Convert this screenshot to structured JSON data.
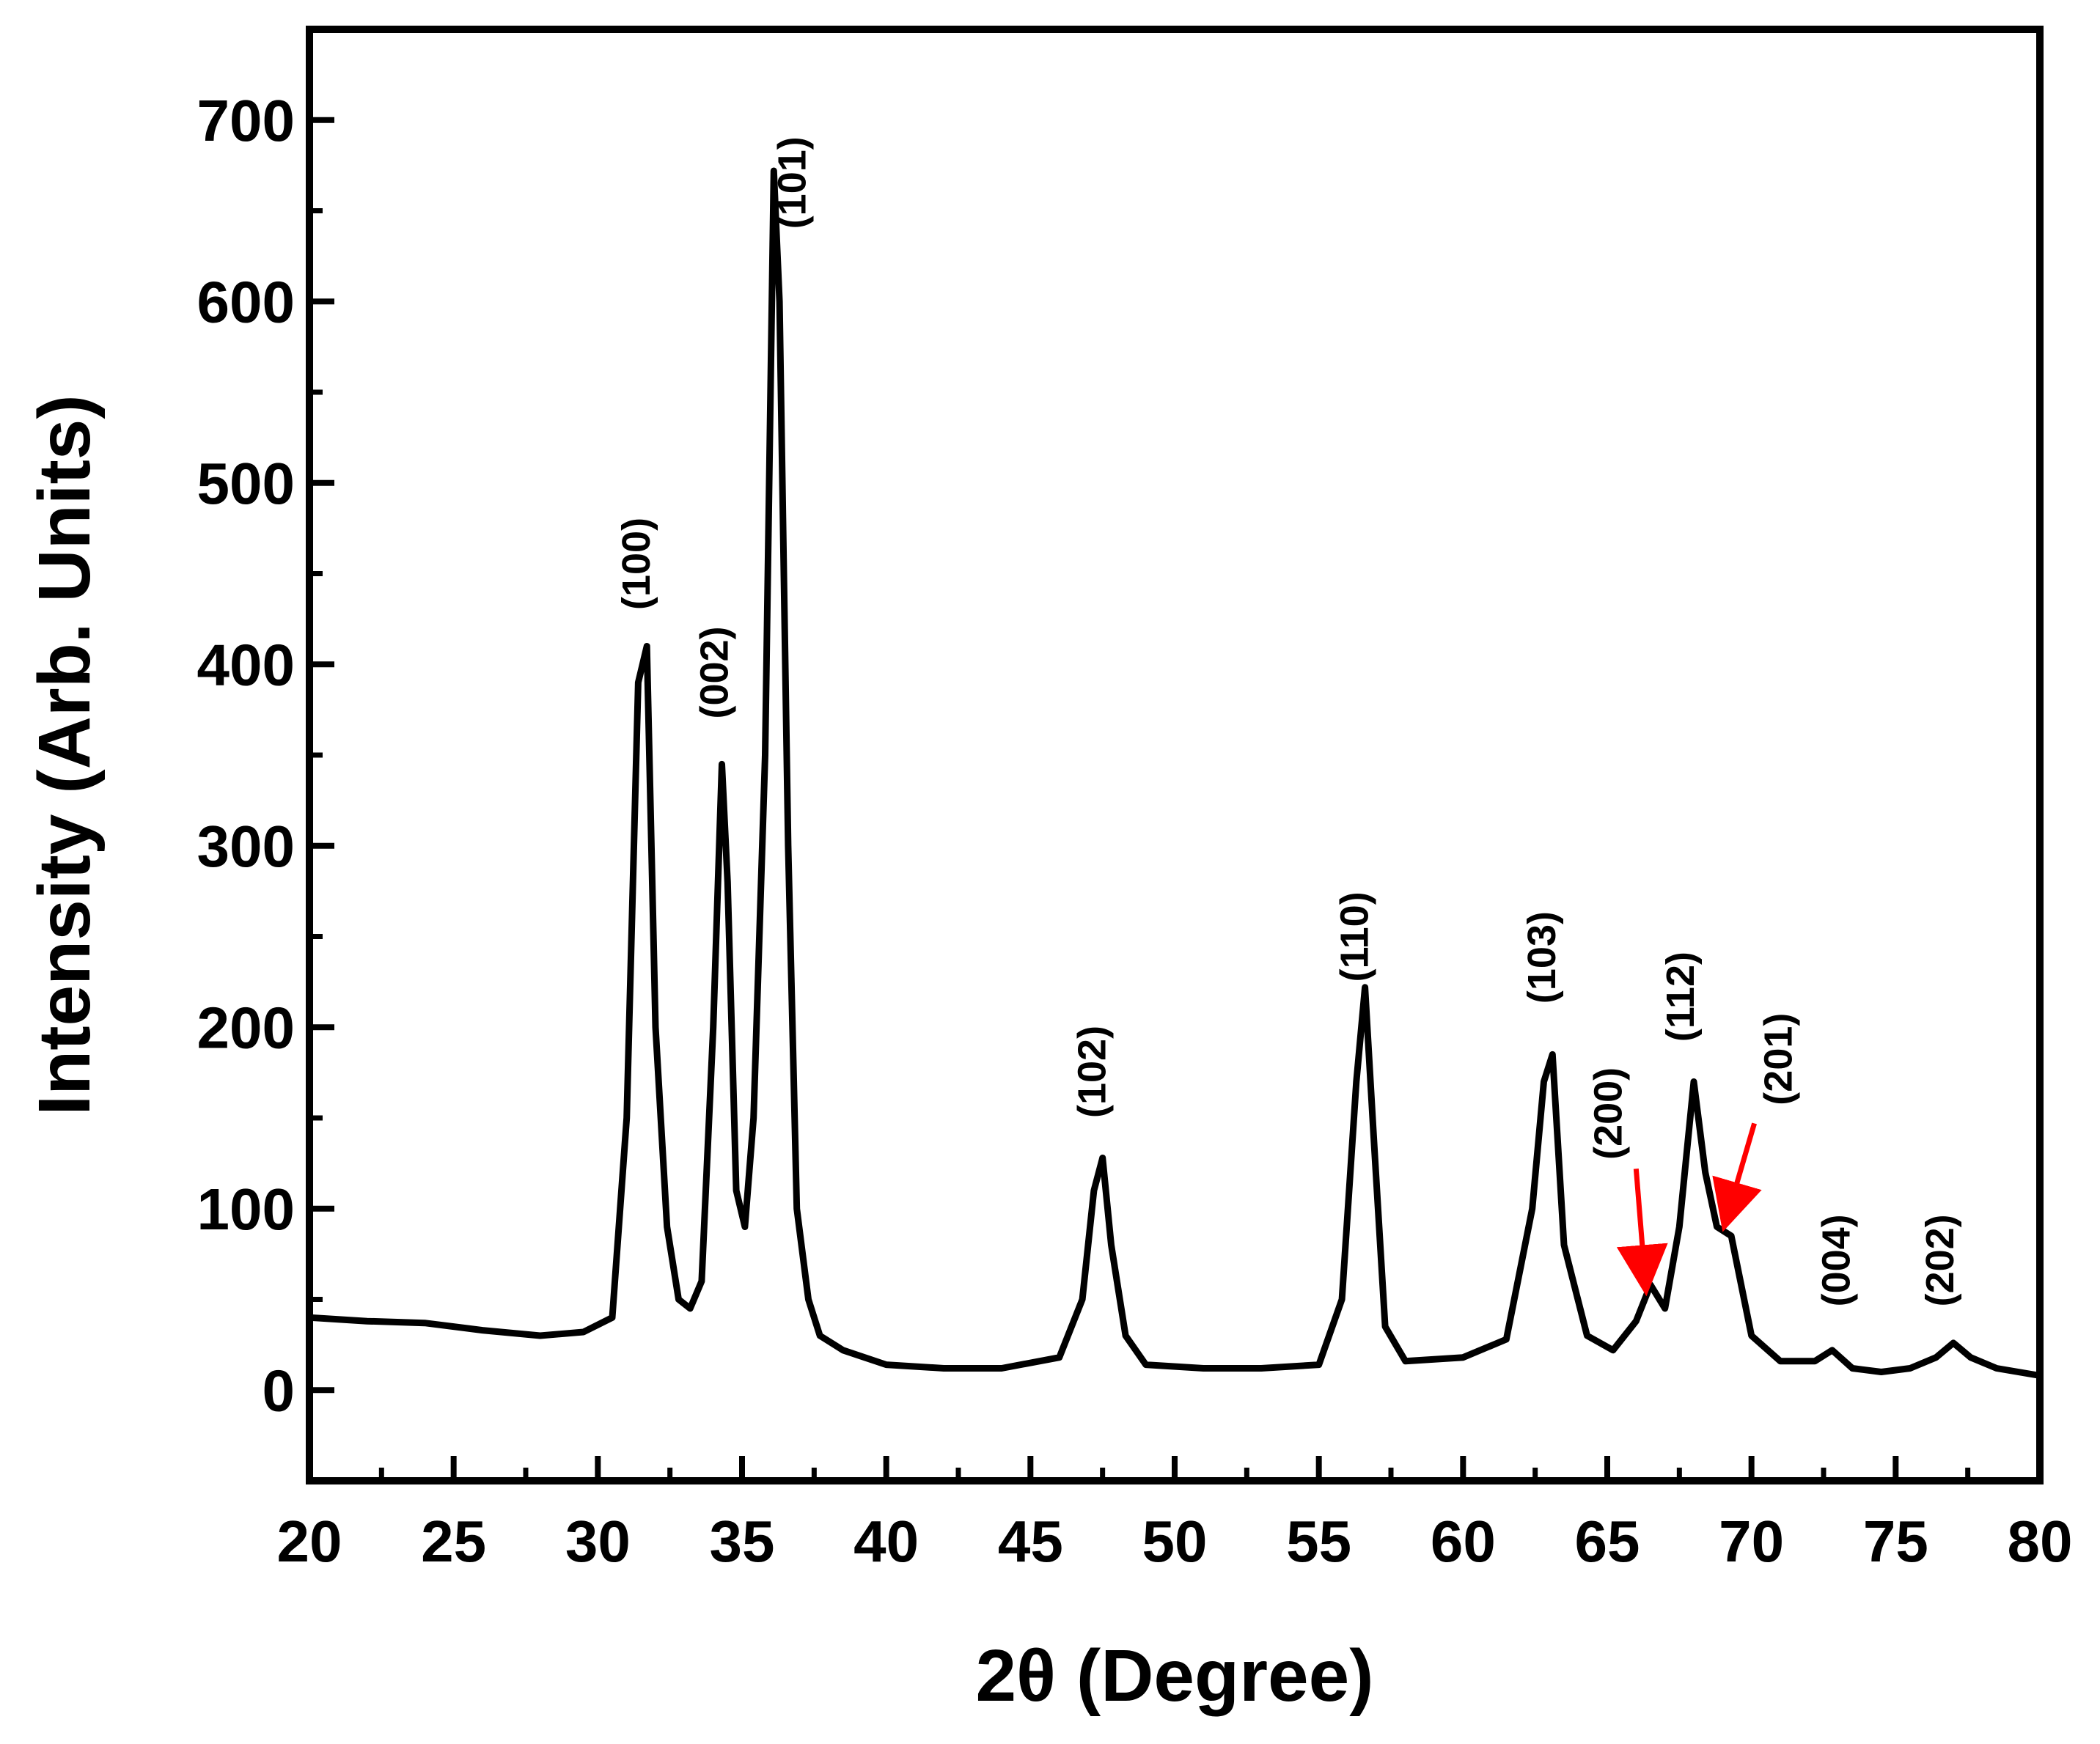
{
  "chart_data": {
    "type": "line",
    "title": "",
    "xlabel": "2θ (Degree)",
    "ylabel": "Intensity (Arb. Units)",
    "xlim": [
      20,
      80
    ],
    "ylim": [
      -50,
      750
    ],
    "x_ticks": [
      20,
      25,
      30,
      35,
      40,
      45,
      50,
      55,
      60,
      65,
      70,
      75,
      80
    ],
    "x_tick_labels": [
      "20",
      "25",
      "30",
      "35",
      "40",
      "45",
      "50",
      "55",
      "60",
      "65",
      "70",
      "75",
      "80"
    ],
    "y_ticks": [
      0,
      100,
      200,
      300,
      400,
      500,
      600,
      700
    ],
    "y_tick_labels": [
      "0",
      "100",
      "200",
      "300",
      "400",
      "500",
      "600",
      "700"
    ],
    "grid": false,
    "legend": "none",
    "line_color": "#000000",
    "arrow_color": "#ff0000",
    "series": [
      {
        "x": [
          20,
          22,
          24,
          26,
          28,
          29.5,
          30.5,
          31,
          31.4,
          31.7,
          32,
          32.4,
          32.8,
          33.2,
          33.6,
          34,
          34.3,
          34.5,
          34.8,
          35.1,
          35.4,
          35.8,
          36.1,
          36.3,
          36.6,
          36.9,
          37.3,
          37.7,
          38.5,
          40,
          42,
          44,
          46,
          46.8,
          47.2,
          47.5,
          47.8,
          48.3,
          49,
          51,
          53,
          55,
          55.8,
          56.3,
          56.6,
          56.9,
          57.3,
          58,
          60,
          61.5,
          62.4,
          62.8,
          63.1,
          63.5,
          64.3,
          65.2,
          66,
          66.5,
          67,
          67.5,
          68,
          68.4,
          68.8,
          69.3,
          70,
          71,
          72.2,
          72.8,
          73.5,
          74.5,
          75.5,
          76.4,
          77,
          77.6,
          78.5,
          80
        ],
        "y": [
          40,
          38,
          37,
          33,
          30,
          32,
          40,
          150,
          390,
          410,
          200,
          90,
          50,
          45,
          60,
          200,
          345,
          280,
          110,
          90,
          150,
          350,
          672,
          600,
          300,
          100,
          50,
          30,
          22,
          14,
          12,
          12,
          18,
          50,
          110,
          128,
          80,
          30,
          14,
          12,
          12,
          14,
          50,
          170,
          222,
          140,
          35,
          16,
          18,
          28,
          100,
          170,
          185,
          80,
          30,
          22,
          38,
          58,
          45,
          90,
          170,
          120,
          90,
          85,
          30,
          16,
          16,
          22,
          12,
          10,
          12,
          18,
          26,
          18,
          12,
          8
        ]
      }
    ],
    "annotations": [
      {
        "text": "(100)",
        "x": 31.8,
        "y": 430
      },
      {
        "text": "(002)",
        "x": 34.5,
        "y": 370
      },
      {
        "text": "(101)",
        "x": 37.2,
        "y": 640
      },
      {
        "text": "(102)",
        "x": 47.6,
        "y": 150
      },
      {
        "text": "(110)",
        "x": 56.7,
        "y": 225
      },
      {
        "text": "(103)",
        "x": 63.2,
        "y": 213
      },
      {
        "text": "(200)",
        "x": 65.5,
        "y": 127
      },
      {
        "text": "(112)",
        "x": 68.0,
        "y": 192
      },
      {
        "text": "(201)",
        "x": 71.4,
        "y": 157
      },
      {
        "text": "(004)",
        "x": 73.4,
        "y": 46
      },
      {
        "text": "(202)",
        "x": 77.0,
        "y": 46
      }
    ],
    "arrows": [
      {
        "label": "(200)",
        "from": [
          66.0,
          122
        ],
        "to": [
          66.3,
          63
        ]
      },
      {
        "label": "(201)",
        "from": [
          70.1,
          147
        ],
        "to": [
          69.2,
          98
        ]
      }
    ]
  }
}
